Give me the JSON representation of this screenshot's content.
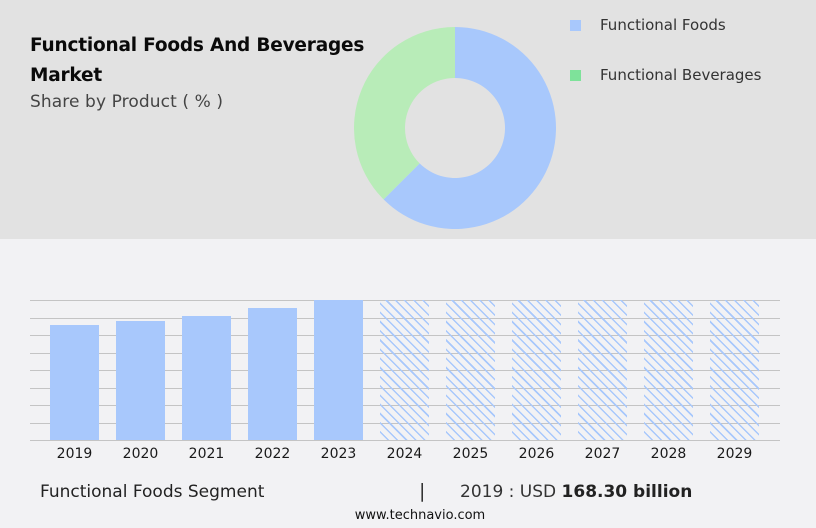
{
  "header": {
    "title": "Functional Foods And Beverages Market",
    "subtitle": "Share by Product ( % )"
  },
  "legend": {
    "items": [
      {
        "label": "Functional Foods",
        "color": "#a8c8fc"
      },
      {
        "label": "Functional Beverages",
        "color": "#7ee29a"
      }
    ]
  },
  "footer": {
    "segment_label": "Functional Foods Segment",
    "divider": "|",
    "value_prefix": "2019 : USD ",
    "value_bold": "168.30 billion",
    "source_url": "www.technavio.com"
  },
  "colors": {
    "top_panel_bg": "#e2e2e2",
    "page_bg": "#f2f2f4",
    "foods": "#a8c8fc",
    "beverages_slice": "#b8ecb8",
    "beverages_legend": "#7ee29a",
    "gridline": "#c4c4c4"
  },
  "chart_data": [
    {
      "type": "pie",
      "subtype": "donut",
      "title": "Functional Foods And Beverages Market",
      "subtitle": "Share by Product ( % )",
      "categories": [
        "Functional Foods",
        "Functional Beverages"
      ],
      "values": [
        62.5,
        37.5
      ],
      "unit": "%",
      "legend_position": "right",
      "note": "Slice values estimated from geometry; no data labels shown"
    },
    {
      "type": "bar",
      "title": "Functional Foods Segment",
      "categories": [
        "2019",
        "2020",
        "2021",
        "2022",
        "2023",
        "2024",
        "2025",
        "2026",
        "2027",
        "2028",
        "2029"
      ],
      "series": [
        {
          "name": "Functional Foods Segment (actual)",
          "values": [
            168.3,
            174.2,
            181.5,
            193.2,
            204.9,
            null,
            null,
            null,
            null,
            null,
            null
          ]
        },
        {
          "name": "Functional Foods Segment (forecast, hatched)",
          "values": [
            null,
            null,
            null,
            null,
            null,
            204.9,
            204.9,
            204.9,
            204.9,
            204.9,
            204.9
          ]
        }
      ],
      "unit": "USD billion",
      "annotation": "2019 : USD 168.30 billion",
      "xlabel": "",
      "ylabel": "",
      "y_axis_labels_visible": false,
      "grid": true,
      "gridline_count": 9,
      "forecast_style": "diagonal hatch, full height"
    }
  ]
}
